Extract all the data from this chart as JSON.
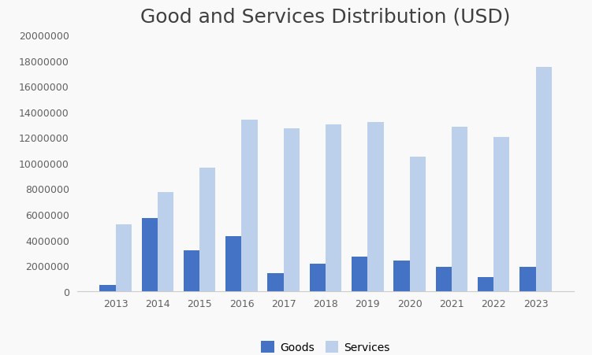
{
  "title": "Good and Services Distribution (USD)",
  "years": [
    2013,
    2014,
    2015,
    2016,
    2017,
    2018,
    2019,
    2020,
    2021,
    2022,
    2023
  ],
  "goods": [
    500000,
    5700000,
    3200000,
    4300000,
    1400000,
    2100000,
    2700000,
    2400000,
    1900000,
    1100000,
    1900000
  ],
  "services": [
    5200000,
    7700000,
    9600000,
    13400000,
    12700000,
    13000000,
    13200000,
    10500000,
    12800000,
    12000000,
    17500000
  ],
  "goods_color": "#4472C4",
  "services_color": "#BDD0EB",
  "background_color": "#f9f9f9",
  "legend_labels": [
    "Goods",
    "Services"
  ],
  "ylim": [
    0,
    20000000
  ],
  "yticks": [
    0,
    2000000,
    4000000,
    6000000,
    8000000,
    10000000,
    12000000,
    14000000,
    16000000,
    18000000,
    20000000
  ],
  "bar_width": 0.38,
  "title_fontsize": 18,
  "tick_fontsize": 9,
  "legend_fontsize": 10
}
